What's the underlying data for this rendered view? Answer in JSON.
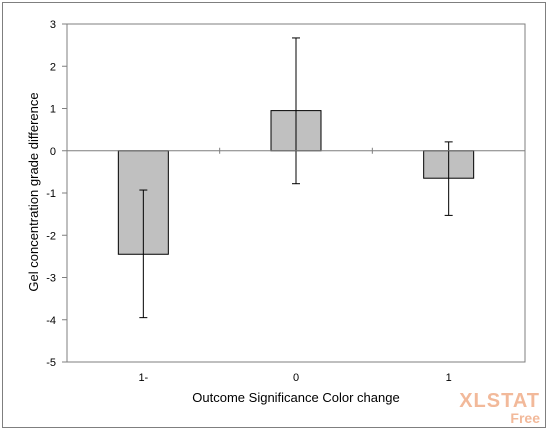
{
  "chart_data": {
    "type": "bar",
    "categories": [
      "1-",
      "0",
      "1"
    ],
    "values": [
      -2.45,
      0.95,
      -0.65
    ],
    "error_low": [
      -3.95,
      -0.78,
      -1.53
    ],
    "error_high": [
      -0.93,
      2.67,
      0.21
    ],
    "xlabel": "Outcome Significance  Color change",
    "ylabel": "Gel concentration grade difference",
    "ylim": [
      -5,
      3
    ],
    "yticks": [
      "3",
      "2",
      "1",
      "0",
      "-1",
      "-2",
      "-3",
      "-4",
      "-5"
    ],
    "grid": false,
    "bar_color": "#c0c0c0",
    "axis_color": "#7f7f7f"
  },
  "watermark": {
    "main": "XLSTAT",
    "sub": "Free",
    "color": "#f2b99a"
  }
}
